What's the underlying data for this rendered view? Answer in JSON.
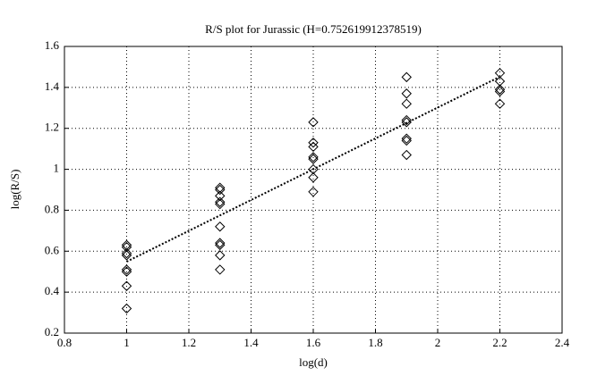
{
  "chart_data": {
    "type": "scatter",
    "title": "R/S plot for Jurassic (H=0.752619912378519)",
    "xlabel": "log(d)",
    "ylabel": "log(R/S)",
    "xlim": [
      0.8,
      2.4
    ],
    "xticks": [
      0.8,
      1,
      1.2,
      1.4,
      1.6,
      1.8,
      2,
      2.2,
      2.4
    ],
    "ylim": [
      0.2,
      1.6
    ],
    "yticks": [
      0.2,
      0.4,
      0.6,
      0.8,
      1,
      1.2,
      1.4,
      1.6
    ],
    "grid": true,
    "series": [
      {
        "type": "scatter",
        "marker": "diamond",
        "color": "#000000",
        "x": [
          1,
          1,
          1,
          1,
          1,
          1,
          1,
          1,
          1.3,
          1.3,
          1.3,
          1.3,
          1.3,
          1.3,
          1.3,
          1.3,
          1.3,
          1.3,
          1.6,
          1.6,
          1.6,
          1.6,
          1.6,
          1.6,
          1.6,
          1.6,
          1.9,
          1.9,
          1.9,
          1.9,
          1.9,
          1.9,
          1.9,
          1.9,
          2.2,
          2.2,
          2.2,
          2.2,
          2.2
        ],
        "values": [
          0.63,
          0.62,
          0.59,
          0.58,
          0.51,
          0.5,
          0.43,
          0.32,
          0.91,
          0.9,
          0.87,
          0.84,
          0.83,
          0.72,
          0.64,
          0.63,
          0.58,
          0.51,
          1.23,
          1.13,
          1.11,
          1.06,
          1.05,
          1,
          0.96,
          0.89,
          1.45,
          1.37,
          1.32,
          1.24,
          1.23,
          1.15,
          1.14,
          1.07,
          1.47,
          1.43,
          1.39,
          1.38,
          1.32
        ]
      },
      {
        "type": "line",
        "style": "dotted",
        "color": "#000000",
        "x": [
          1,
          2.2
        ],
        "values": [
          0.549,
          1.452
        ]
      }
    ]
  }
}
